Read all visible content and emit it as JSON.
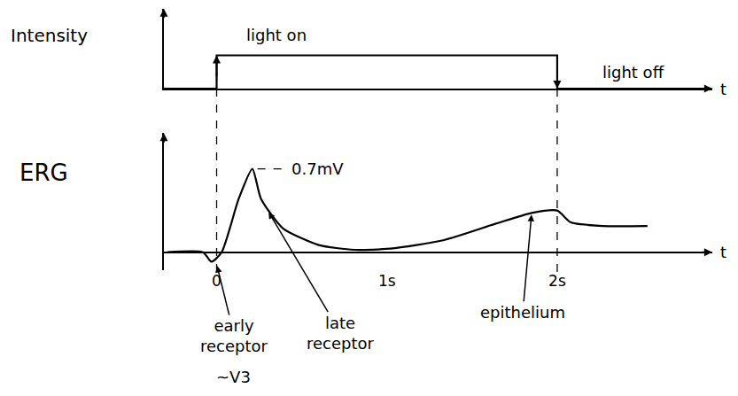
{
  "chart_data": [
    {
      "type": "line",
      "y_label": "Intensity",
      "x_label": "t",
      "x": [
        -0.31,
        0,
        0,
        2,
        2,
        2.91
      ],
      "values": [
        0,
        0,
        1,
        1,
        0,
        0
      ],
      "xlim": [
        -0.31,
        2.91
      ],
      "ylim": [
        0,
        2.4
      ],
      "xticks": [],
      "yticks": [],
      "tick_labels": false,
      "color": "#000000",
      "annotations": [
        "light on",
        "light off"
      ]
    },
    {
      "type": "line",
      "y_label": "ERG",
      "x_label": "t",
      "x": [
        -0.29,
        -0.08,
        -0.03,
        0.03,
        0.13,
        0.21,
        0.26,
        0.39,
        0.6,
        0.81,
        1.02,
        1.33,
        1.64,
        1.85,
        2.0,
        2.08,
        2.27,
        2.53
      ],
      "values": [
        0,
        0,
        -0.08,
        0,
        0.45,
        0.7,
        0.45,
        0.2,
        0.06,
        0.02,
        0.03,
        0.1,
        0.24,
        0.33,
        0.35,
        0.25,
        0.22,
        0.22
      ],
      "xlim": [
        -0.31,
        2.91
      ],
      "ylim": [
        -0.15,
        1.0
      ],
      "xticks": [
        0,
        {
          "value": 1,
          "label": "1s"
        },
        {
          "value": 2,
          "label": "2s"
        }
      ],
      "yticks": [],
      "tick_labels": "x",
      "color": "#000000",
      "annotations": [
        "0.7mV",
        "early receptor",
        "~V3",
        "late receptor",
        "epithelium"
      ]
    }
  ]
}
